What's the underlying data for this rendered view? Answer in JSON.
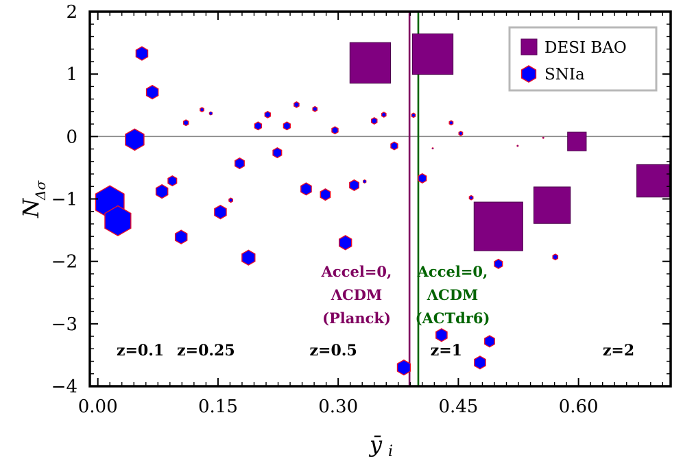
{
  "chart_data": {
    "type": "scatter",
    "xlabel": "ȳ",
    "xlabel_sub": "i",
    "ylabel": "N",
    "ylabel_sub": "Δσ",
    "xlim": [
      -0.01,
      0.715
    ],
    "ylim": [
      -4,
      2
    ],
    "xticks": [
      0.0,
      0.15,
      0.3,
      0.45,
      0.6
    ],
    "xtick_labels": [
      "0.00",
      "0.15",
      "0.30",
      "0.45",
      "0.60"
    ],
    "yticks": [
      2,
      1,
      0,
      -1,
      -2,
      -3,
      -4
    ],
    "ytick_labels": [
      "2",
      "1",
      "0",
      "−1",
      "−2",
      "−3",
      "−4"
    ],
    "zero_line": 0,
    "legend": {
      "placement": "top-right",
      "entries": [
        {
          "label": "DESI BAO",
          "marker": "square",
          "color": "#800080"
        },
        {
          "label": "SNIa",
          "marker": "hexagon",
          "color": "#0000ff",
          "edge": "#ff0000"
        }
      ]
    },
    "colors": {
      "desi": "#800080",
      "snia_fill": "#0000ff",
      "snia_edge": "#e8102a",
      "planck": "#800060",
      "act": "#006400",
      "zero_line": "#888888"
    },
    "vlines": [
      {
        "x": 0.389,
        "color": "#800060",
        "label_lines": [
          "Accel=0,",
          "ΛCDM",
          "(Planck)"
        ]
      },
      {
        "x": 0.4,
        "color": "#006400",
        "label_lines": [
          "Accel=0,",
          "ΛCDM",
          "(ACTdr6)"
        ]
      }
    ],
    "z_labels": [
      {
        "text": "z=0.1",
        "x": 0.053
      },
      {
        "text": "z=0.25",
        "x": 0.135
      },
      {
        "text": "z=0.5",
        "x": 0.294
      },
      {
        "text": "z=1",
        "x": 0.435
      },
      {
        "text": "z=2",
        "x": 0.65
      }
    ],
    "z_labels_y": -3.42,
    "series": [
      {
        "name": "DESI BAO",
        "marker": "square",
        "points": [
          {
            "x": 0.34,
            "y": 1.18,
            "size": 5
          },
          {
            "x": 0.418,
            "y": 1.32,
            "size": 5
          },
          {
            "x": 0.5,
            "y": -1.44,
            "size": 6
          },
          {
            "x": 0.567,
            "y": -1.1,
            "size": 4.5
          },
          {
            "x": 0.598,
            "y": -0.08,
            "size": 2.3
          },
          {
            "x": 0.693,
            "y": -0.71,
            "size": 4
          }
        ]
      },
      {
        "name": "SNIa",
        "marker": "hexagon",
        "points": [
          {
            "x": 0.015,
            "y": -1.05,
            "size": 4.6
          },
          {
            "x": 0.025,
            "y": -1.35,
            "size": 4.2
          },
          {
            "x": 0.046,
            "y": -0.05,
            "size": 3.0
          },
          {
            "x": 0.055,
            "y": 1.33,
            "size": 1.9
          },
          {
            "x": 0.068,
            "y": 0.71,
            "size": 1.9
          },
          {
            "x": 0.08,
            "y": -0.88,
            "size": 1.9
          },
          {
            "x": 0.093,
            "y": -0.71,
            "size": 1.4
          },
          {
            "x": 0.104,
            "y": -1.61,
            "size": 1.9
          },
          {
            "x": 0.11,
            "y": 0.22,
            "size": 0.8
          },
          {
            "x": 0.13,
            "y": 0.43,
            "size": 0.6
          },
          {
            "x": 0.141,
            "y": 0.37,
            "size": 0.5
          },
          {
            "x": 0.153,
            "y": -1.21,
            "size": 1.9
          },
          {
            "x": 0.166,
            "y": -1.02,
            "size": 0.6
          },
          {
            "x": 0.177,
            "y": -0.43,
            "size": 1.5
          },
          {
            "x": 0.188,
            "y": -1.94,
            "size": 2.1
          },
          {
            "x": 0.2,
            "y": 0.17,
            "size": 1.1
          },
          {
            "x": 0.212,
            "y": 0.35,
            "size": 0.9
          },
          {
            "x": 0.224,
            "y": -0.26,
            "size": 1.4
          },
          {
            "x": 0.236,
            "y": 0.17,
            "size": 1.1
          },
          {
            "x": 0.248,
            "y": 0.51,
            "size": 0.8
          },
          {
            "x": 0.26,
            "y": -0.84,
            "size": 1.7
          },
          {
            "x": 0.271,
            "y": 0.44,
            "size": 0.7
          },
          {
            "x": 0.284,
            "y": -0.93,
            "size": 1.6
          },
          {
            "x": 0.296,
            "y": 0.1,
            "size": 1.0
          },
          {
            "x": 0.309,
            "y": -1.7,
            "size": 2.0
          },
          {
            "x": 0.32,
            "y": -0.78,
            "size": 1.5
          },
          {
            "x": 0.333,
            "y": -0.72,
            "size": 0.5
          },
          {
            "x": 0.345,
            "y": 0.25,
            "size": 0.9
          },
          {
            "x": 0.357,
            "y": 0.35,
            "size": 0.7
          },
          {
            "x": 0.37,
            "y": -0.15,
            "size": 1.1
          },
          {
            "x": 0.382,
            "y": -3.7,
            "size": 2.1
          },
          {
            "x": 0.394,
            "y": 0.34,
            "size": 0.6
          },
          {
            "x": 0.405,
            "y": -0.67,
            "size": 1.3
          },
          {
            "x": 0.418,
            "y": -0.19,
            "size": 0.2
          },
          {
            "x": 0.429,
            "y": -3.18,
            "size": 1.8
          },
          {
            "x": 0.441,
            "y": 0.22,
            "size": 0.6
          },
          {
            "x": 0.453,
            "y": 0.05,
            "size": 0.6
          },
          {
            "x": 0.466,
            "y": -0.98,
            "size": 0.6
          },
          {
            "x": 0.477,
            "y": -3.62,
            "size": 1.8
          },
          {
            "x": 0.489,
            "y": -3.28,
            "size": 1.6
          },
          {
            "x": 0.5,
            "y": -2.04,
            "size": 1.3
          },
          {
            "x": 0.524,
            "y": -0.15,
            "size": 0.2
          },
          {
            "x": 0.571,
            "y": -1.93,
            "size": 0.8
          },
          {
            "x": 0.556,
            "y": -0.02,
            "size": 0.1
          }
        ]
      }
    ]
  }
}
